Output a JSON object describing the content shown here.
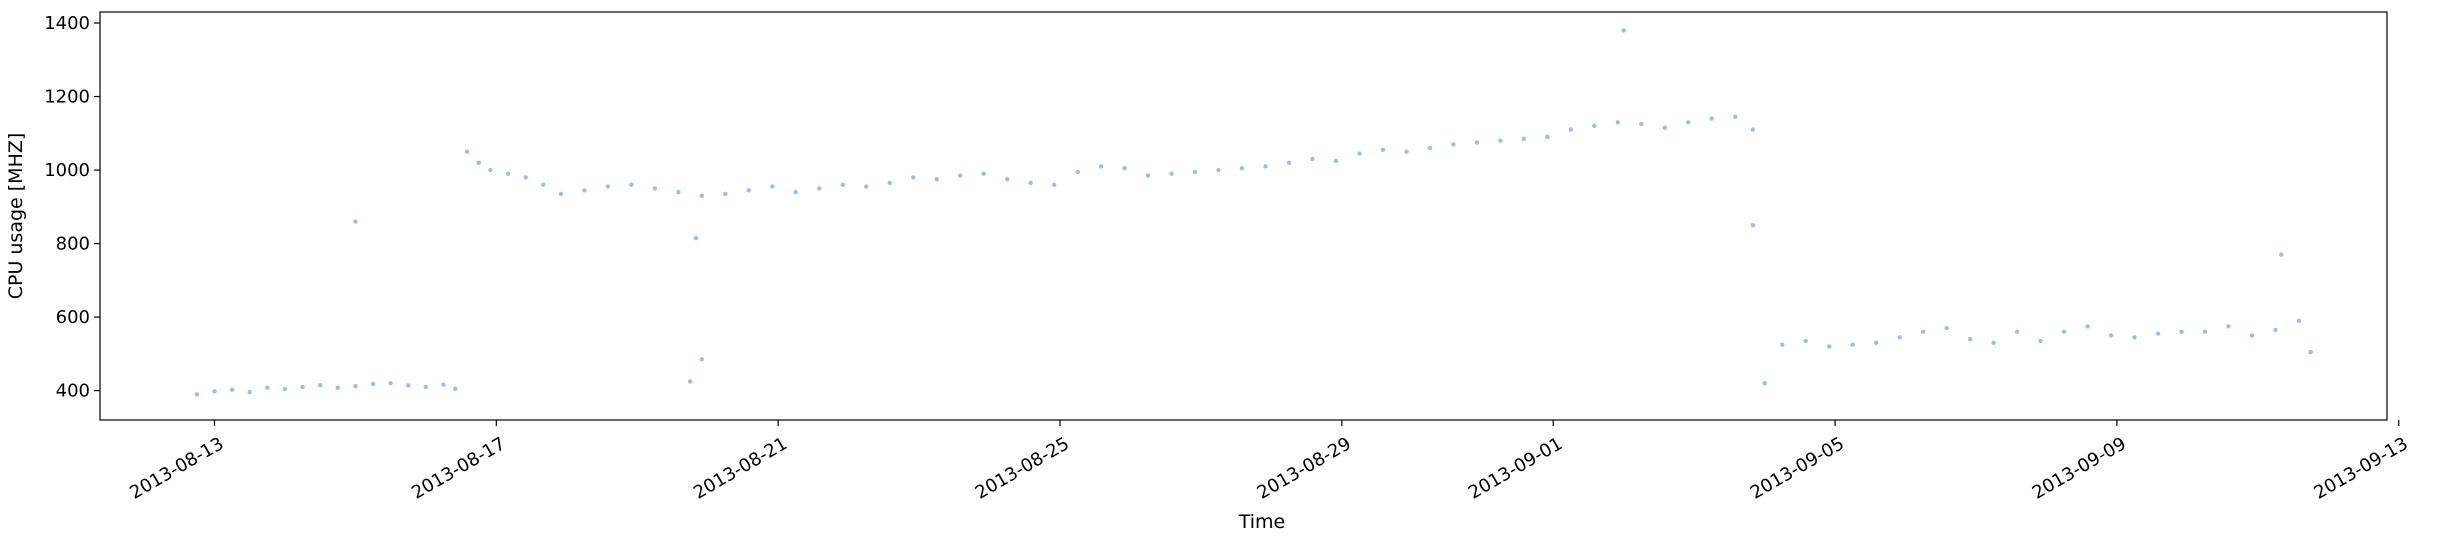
{
  "chart_data": {
    "type": "scatter",
    "title": "",
    "xlabel": "Time",
    "ylabel": "CPU usage [MHZ]",
    "xlim": [
      "2013-08-11T09:00",
      "2013-09-12T20:00"
    ],
    "ylim": [
      320,
      1430
    ],
    "grid": false,
    "point_color": "#1f77b4",
    "point_alpha": 0.45,
    "x_ticks": [
      "2013-08-13",
      "2013-08-17",
      "2013-08-21",
      "2013-08-25",
      "2013-08-29",
      "2013-09-01",
      "2013-09-05",
      "2013-09-09",
      "2013-09-13"
    ],
    "y_ticks": [
      400,
      600,
      800,
      1000,
      1200,
      1400
    ],
    "series": [
      {
        "values_note_free": true,
        "x": [
          "2013-08-12T18:00",
          "2013-08-13T00:00",
          "2013-08-13T06:00",
          "2013-08-13T12:00",
          "2013-08-13T18:00",
          "2013-08-14T00:00",
          "2013-08-14T06:00",
          "2013-08-14T12:00",
          "2013-08-14T18:00",
          "2013-08-15T00:00",
          "2013-08-15T06:00",
          "2013-08-15T12:00",
          "2013-08-15T18:00",
          "2013-08-16T00:00",
          "2013-08-16T06:00",
          "2013-08-16T10:00",
          "2013-08-16T14:00",
          "2013-08-16T18:00",
          "2013-08-16T22:00",
          "2013-08-17T04:00",
          "2013-08-17T10:00",
          "2013-08-17T16:00",
          "2013-08-17T22:00",
          "2013-08-18T06:00",
          "2013-08-18T14:00",
          "2013-08-18T22:00",
          "2013-08-19T06:00",
          "2013-08-19T14:00",
          "2013-08-19T22:00",
          "2013-08-20T06:00",
          "2013-08-20T14:00",
          "2013-08-20T22:00",
          "2013-08-21T06:00",
          "2013-08-21T14:00",
          "2013-08-21T22:00",
          "2013-08-22T06:00",
          "2013-08-22T14:00",
          "2013-08-22T22:00",
          "2013-08-23T06:00",
          "2013-08-23T14:00",
          "2013-08-23T22:00",
          "2013-08-24T06:00",
          "2013-08-24T14:00",
          "2013-08-24T22:00",
          "2013-08-25T06:00",
          "2013-08-25T14:00",
          "2013-08-25T22:00",
          "2013-08-26T06:00",
          "2013-08-26T14:00",
          "2013-08-26T22:00",
          "2013-08-27T06:00",
          "2013-08-27T14:00",
          "2013-08-27T22:00",
          "2013-08-28T06:00",
          "2013-08-28T14:00",
          "2013-08-28T22:00",
          "2013-08-29T06:00",
          "2013-08-29T14:00",
          "2013-08-29T22:00",
          "2013-08-30T06:00",
          "2013-08-30T14:00",
          "2013-08-30T22:00",
          "2013-08-31T06:00",
          "2013-08-31T14:00",
          "2013-08-31T22:00",
          "2013-09-01T06:00",
          "2013-09-01T14:00",
          "2013-09-01T22:00",
          "2013-09-02T06:00",
          "2013-09-02T14:00",
          "2013-09-02T22:00",
          "2013-09-03T06:00",
          "2013-09-03T14:00",
          "2013-09-03T20:00",
          "2013-09-04T00:00",
          "2013-09-04T06:00",
          "2013-09-04T14:00",
          "2013-09-04T22:00",
          "2013-09-05T06:00",
          "2013-09-05T14:00",
          "2013-09-05T22:00",
          "2013-09-06T06:00",
          "2013-09-06T14:00",
          "2013-09-06T22:00",
          "2013-09-07T06:00",
          "2013-09-07T14:00",
          "2013-09-07T22:00",
          "2013-09-08T06:00",
          "2013-09-08T14:00",
          "2013-09-08T22:00",
          "2013-09-09T06:00",
          "2013-09-09T14:00",
          "2013-09-09T22:00",
          "2013-09-10T06:00",
          "2013-09-10T14:00",
          "2013-09-10T22:00",
          "2013-09-11T06:00",
          "2013-09-11T14:00",
          "2013-09-11T18:00",
          "2013-08-15T00:00",
          "2013-08-19T20:00",
          "2013-08-19T22:00",
          "2013-08-19T18:00",
          "2013-09-02T00:00",
          "2013-09-03T20:00",
          "2013-09-11T08:00"
        ],
        "y": [
          390,
          398,
          402,
          396,
          408,
          404,
          410,
          415,
          408,
          412,
          418,
          420,
          414,
          410,
          416,
          405,
          1050,
          1020,
          1000,
          990,
          980,
          960,
          935,
          945,
          955,
          960,
          950,
          940,
          930,
          935,
          945,
          955,
          940,
          950,
          960,
          955,
          965,
          980,
          975,
          985,
          990,
          975,
          965,
          960,
          995,
          1010,
          1005,
          985,
          990,
          995,
          1000,
          1005,
          1010,
          1020,
          1030,
          1025,
          1045,
          1055,
          1050,
          1060,
          1070,
          1075,
          1080,
          1085,
          1090,
          1110,
          1120,
          1130,
          1125,
          1115,
          1130,
          1140,
          1145,
          1110,
          420,
          525,
          535,
          520,
          525,
          530,
          545,
          560,
          570,
          540,
          530,
          560,
          535,
          560,
          575,
          550,
          545,
          555,
          560,
          560,
          575,
          550,
          565,
          590,
          505,
          860,
          815,
          485,
          425,
          1380,
          850,
          770
        ]
      }
    ]
  }
}
